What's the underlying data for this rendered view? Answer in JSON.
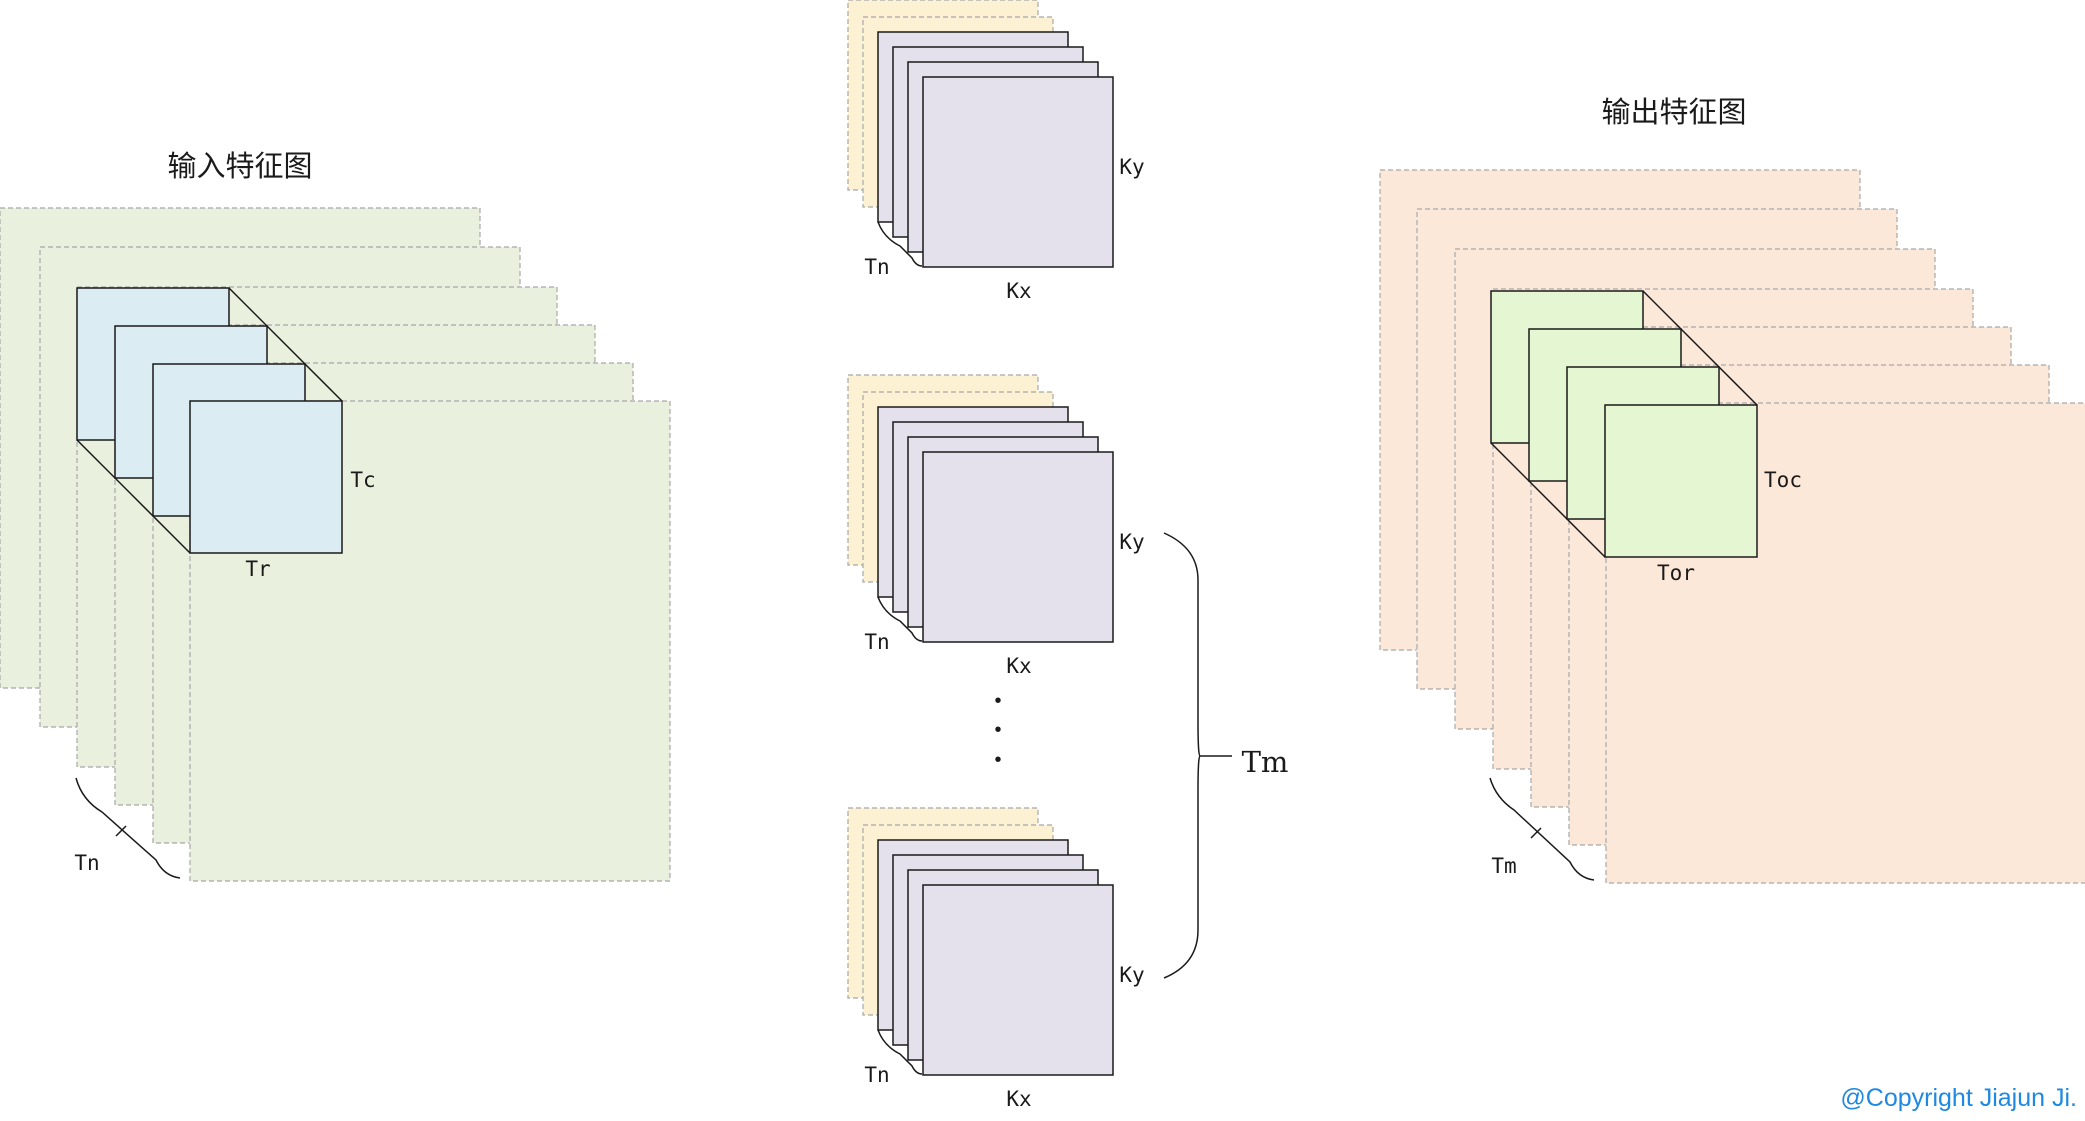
{
  "colors": {
    "input_map_fill": "#e9f0dd",
    "input_tile_fill": "#dbecf2",
    "output_map_fill": "#fce8d9",
    "output_tile_fill": "#e5f6d3",
    "kernel_back_fill": "#fcf1d3",
    "kernel_front_fill": "#e4e1ec",
    "copyright_color": "#1f88e0",
    "line_color": "#1a1a1a",
    "dash_color": "#a8a8a8"
  },
  "input": {
    "title": "输入特征图",
    "tile_height_label": "Tc",
    "tile_width_label": "Tr",
    "depth_label": "Tn"
  },
  "output": {
    "title": "输出特征图",
    "tile_height_label": "Toc",
    "tile_width_label": "Tor",
    "depth_label": "Tm"
  },
  "kernels": {
    "height_label": "Ky",
    "width_label": "Kx",
    "depth_label": "Tn",
    "group_label": "Tm",
    "ellipsis": "•"
  },
  "copyright": "@Copyright Jiajun Ji."
}
